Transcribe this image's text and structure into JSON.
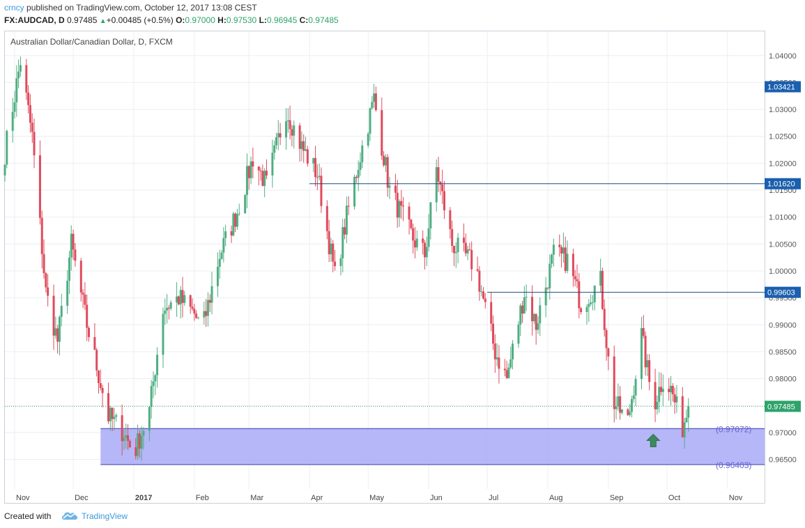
{
  "header": {
    "user": "crncy",
    "published": "published on TradingView.com, October 12, 2017 13:08 CEST",
    "symbol": "FX:AUDCAD, D",
    "last": "0.97485",
    "change_arrow": "▲",
    "change": "+0.00485 (+0.5%)",
    "o_label": "O:",
    "o_val": "0.97000",
    "h_label": "H:",
    "h_val": "0.97530",
    "l_label": "L:",
    "l_val": "0.96945",
    "c_label": "C:",
    "c_val": "0.97485"
  },
  "footer": {
    "created_with": "Created with",
    "brand": "TradingView",
    "logo_icon": "cloud-logo-icon"
  },
  "colors": {
    "up": "#4fae82",
    "down": "#e04a5c",
    "hline": "#19497a",
    "zone_fill": "#a9aaf8",
    "zone_line": "#3c3caa",
    "zone_label": "#6464d6",
    "price_line": "#3fa876",
    "price_tag": "#2ea36a",
    "tag_blue": "#1b5fae",
    "arrow": "#3c8b5e",
    "grid": "#ebeef2"
  },
  "chart_data": {
    "type": "candlestick",
    "title": "Australian Dollar/Canadian Dollar, D, FXCM",
    "ylim": [
      0.9595,
      1.0445
    ],
    "y_ticks": [
      "1.04000",
      "1.03500",
      "1.03000",
      "1.02500",
      "1.02000",
      "1.01500",
      "1.01000",
      "1.00500",
      "1.00000",
      "0.99500",
      "0.99000",
      "0.98500",
      "0.98000",
      "0.97500",
      "0.97000",
      "0.96500"
    ],
    "x_ticks": [
      "Nov",
      "Dec",
      "2017",
      "Feb",
      "Mar",
      "Apr",
      "May",
      "Jun",
      "Jul",
      "Aug",
      "Sep",
      "Oct",
      "Nov"
    ],
    "grid": true,
    "horizontal_lines": [
      {
        "label": "1.03421",
        "value": 1.03421,
        "tag_only": true
      },
      {
        "label": "1.01620",
        "value": 1.0162,
        "from": "2017-04-01"
      },
      {
        "label": "0.99603",
        "value": 0.99603,
        "from": "2017-07-01"
      }
    ],
    "current_price": {
      "label": "0.97485",
      "value": 0.97485
    },
    "zone": {
      "from": "2016-12-15",
      "upper": 0.97072,
      "lower": 0.96403,
      "upper_label": "(0.97072)",
      "lower_label": "(0.96403)"
    },
    "arrow": {
      "date": "2017-09-24",
      "value": 0.9685,
      "direction": "up"
    },
    "anchors": [
      [
        "2016-10-27",
        1.022
      ],
      [
        "2016-11-04",
        1.039
      ],
      [
        "2016-11-10",
        1.025
      ],
      [
        "2016-11-17",
        0.996
      ],
      [
        "2016-11-23",
        0.987
      ],
      [
        "2016-11-30",
        1.005
      ],
      [
        "2016-12-08",
        0.99
      ],
      [
        "2016-12-19",
        0.973
      ],
      [
        "2016-12-27",
        0.97
      ],
      [
        "2017-01-01",
        0.966
      ],
      [
        "2017-01-09",
        0.974
      ],
      [
        "2017-01-16",
        0.993
      ],
      [
        "2017-01-24",
        0.995
      ],
      [
        "2017-02-01",
        0.992
      ],
      [
        "2017-02-05",
        0.989
      ],
      [
        "2017-02-14",
        1.003
      ],
      [
        "2017-02-23",
        1.011
      ],
      [
        "2017-03-03",
        1.021
      ],
      [
        "2017-03-10",
        1.016
      ],
      [
        "2017-03-20",
        1.03
      ],
      [
        "2017-03-28",
        1.023
      ],
      [
        "2017-04-05",
        1.018
      ],
      [
        "2017-04-14",
        0.999
      ],
      [
        "2017-04-20",
        1.01
      ],
      [
        "2017-04-26",
        1.02
      ],
      [
        "2017-05-04",
        1.032
      ],
      [
        "2017-05-12",
        1.015
      ],
      [
        "2017-05-24",
        1.006
      ],
      [
        "2017-05-30",
        1.003
      ],
      [
        "2017-06-05",
        1.019
      ],
      [
        "2017-06-13",
        1.005
      ],
      [
        "2017-06-25",
        1.001
      ],
      [
        "2017-07-05",
        0.985
      ],
      [
        "2017-07-11",
        0.98
      ],
      [
        "2017-07-20",
        0.996
      ],
      [
        "2017-07-26",
        0.99
      ],
      [
        "2017-08-04",
        1.003
      ],
      [
        "2017-08-11",
        1.002
      ],
      [
        "2017-08-18",
        0.994
      ],
      [
        "2017-08-28",
        0.998
      ],
      [
        "2017-09-03",
        0.976
      ],
      [
        "2017-09-11",
        0.972
      ],
      [
        "2017-09-18",
        0.988
      ],
      [
        "2017-09-24",
        0.975
      ],
      [
        "2017-09-29",
        0.98
      ],
      [
        "2017-10-03",
        0.978
      ],
      [
        "2017-10-09",
        0.971
      ],
      [
        "2017-10-12",
        0.97485
      ]
    ]
  }
}
